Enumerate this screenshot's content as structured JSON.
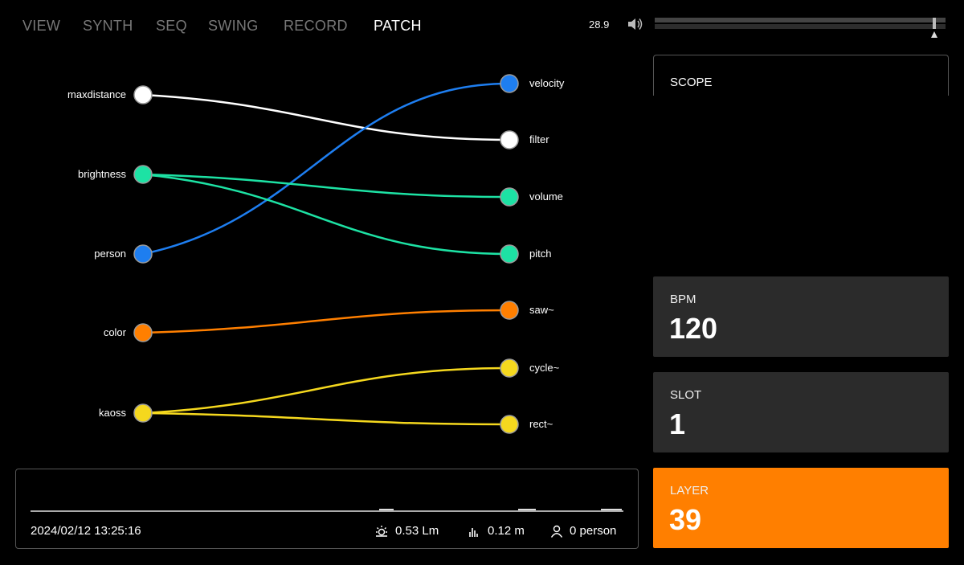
{
  "nav": {
    "tabs": [
      {
        "label": "VIEW",
        "active": false
      },
      {
        "label": "SYNTH",
        "active": false
      },
      {
        "label": "SEQ",
        "active": false
      },
      {
        "label": "SWING",
        "active": false
      },
      {
        "label": "RECORD",
        "active": false
      },
      {
        "label": "PATCH",
        "active": true
      }
    ]
  },
  "header": {
    "value": "28.9",
    "volume_icon": "speaker-icon",
    "volume_level": 0.96
  },
  "scope": {
    "label": "SCOPE"
  },
  "cards": {
    "bpm": {
      "label": "BPM",
      "value": "120"
    },
    "slot": {
      "label": "SLOT",
      "value": "1"
    },
    "layer": {
      "label": "LAYER",
      "value": "39",
      "color": "#ff7f00"
    }
  },
  "patch": {
    "inputs": [
      {
        "label": "maxdistance",
        "color": "#ffffff"
      },
      {
        "label": "brightness",
        "color": "#1de2a4"
      },
      {
        "label": "person",
        "color": "#1e7ef0"
      },
      {
        "label": "color",
        "color": "#ff7f00"
      },
      {
        "label": "kaoss",
        "color": "#f5d81e"
      }
    ],
    "outputs": [
      {
        "label": "velocity",
        "color": "#1e7ef0"
      },
      {
        "label": "filter",
        "color": "#ffffff"
      },
      {
        "label": "volume",
        "color": "#1de2a4"
      },
      {
        "label": "pitch",
        "color": "#1de2a4"
      },
      {
        "label": "saw~",
        "color": "#ff7f00"
      },
      {
        "label": "cycle~",
        "color": "#f5d81e"
      },
      {
        "label": "rect~",
        "color": "#f5d81e"
      }
    ],
    "connections": [
      {
        "from": "maxdistance",
        "to": "filter",
        "color": "#ffffff"
      },
      {
        "from": "person",
        "to": "velocity",
        "color": "#1e7ef0"
      },
      {
        "from": "brightness",
        "to": "volume",
        "color": "#1de2a4"
      },
      {
        "from": "brightness",
        "to": "pitch",
        "color": "#1de2a4"
      },
      {
        "from": "color",
        "to": "saw~",
        "color": "#ff7f00"
      },
      {
        "from": "kaoss",
        "to": "cycle~",
        "color": "#f5d81e"
      },
      {
        "from": "kaoss",
        "to": "rect~",
        "color": "#f5d81e"
      }
    ]
  },
  "status": {
    "datetime": "2024/02/12 13:25:16",
    "brightness": {
      "icon": "sun-icon",
      "text": "0.53 Lm"
    },
    "distance": {
      "icon": "bars-icon",
      "text": "0.12 m"
    },
    "person": {
      "icon": "person-icon",
      "text": "0 person"
    }
  }
}
